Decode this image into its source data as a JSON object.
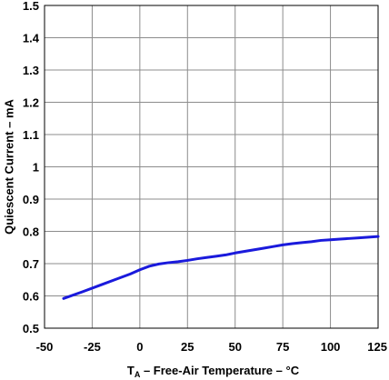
{
  "chart_data": {
    "type": "line",
    "title": "",
    "xlabel": {
      "prefix": "T",
      "subscript": "A",
      "suffix": " – Free-Air Temperature – °C"
    },
    "ylabel": "Quiescent Current – mA",
    "xlim": [
      -50,
      125
    ],
    "ylim": [
      0.5,
      1.5
    ],
    "xticks": [
      -50,
      -25,
      0,
      25,
      50,
      75,
      100,
      125
    ],
    "xtick_labels": [
      "-50",
      "-25",
      "0",
      "25",
      "50",
      "75",
      "100",
      "125"
    ],
    "yticks": [
      0.5,
      0.6,
      0.7,
      0.8,
      0.9,
      1.0,
      1.1,
      1.2,
      1.3,
      1.4,
      1.5
    ],
    "ytick_labels": [
      "0.5",
      "0.6",
      "0.7",
      "0.8",
      "0.9",
      "1",
      "1.1",
      "1.2",
      "1.3",
      "1.4",
      "1.5"
    ],
    "grid": true,
    "series_color": "#1a1adc",
    "series": [
      {
        "x": [
          -40,
          -30,
          -20,
          -10,
          -5,
          0,
          5,
          10,
          15,
          20,
          25,
          30,
          35,
          40,
          45,
          50,
          55,
          60,
          65,
          70,
          75,
          80,
          85,
          90,
          95,
          100,
          105,
          110,
          115,
          120,
          125
        ],
        "values": [
          0.592,
          0.613,
          0.635,
          0.657,
          0.668,
          0.681,
          0.692,
          0.699,
          0.703,
          0.706,
          0.71,
          0.715,
          0.719,
          0.723,
          0.727,
          0.733,
          0.738,
          0.743,
          0.748,
          0.753,
          0.758,
          0.762,
          0.765,
          0.768,
          0.772,
          0.774,
          0.776,
          0.778,
          0.78,
          0.782,
          0.784
        ]
      }
    ]
  }
}
